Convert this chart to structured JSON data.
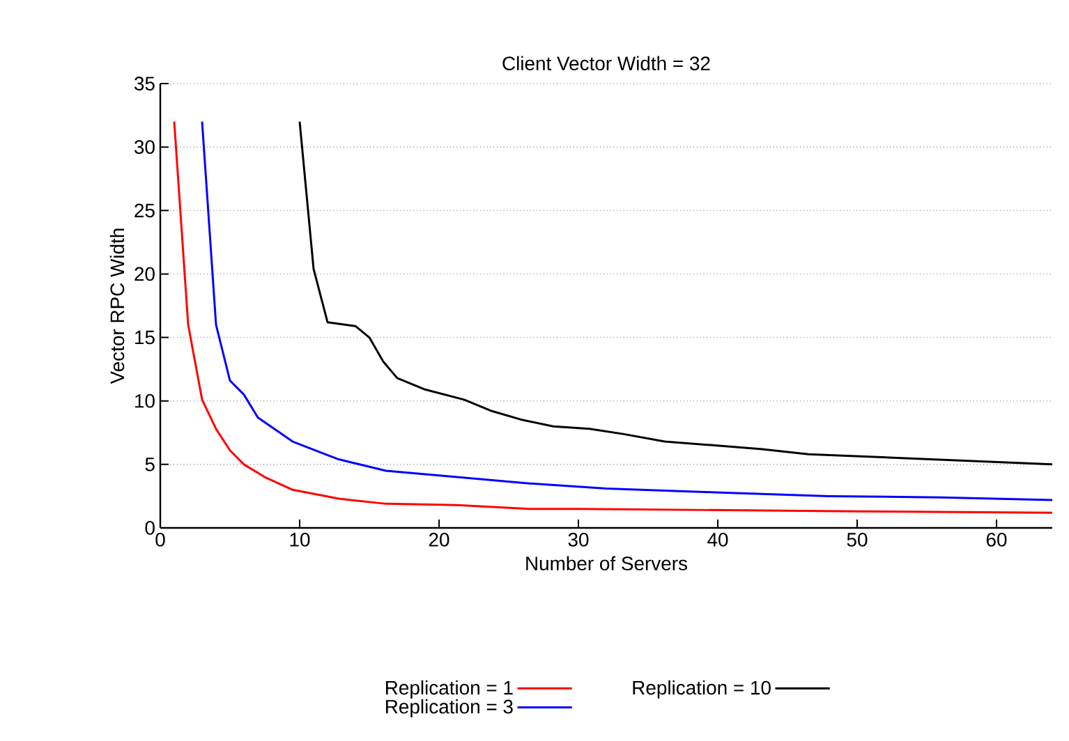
{
  "chart_data": {
    "type": "line",
    "title": "Client Vector Width = 32",
    "xlabel": "Number of Servers",
    "ylabel": "Vector RPC Width",
    "xlim": [
      0,
      64
    ],
    "ylim": [
      0,
      35
    ],
    "xticks": [
      0,
      10,
      20,
      30,
      40,
      50,
      60
    ],
    "yticks": [
      0,
      5,
      10,
      15,
      20,
      25,
      30,
      35
    ],
    "grid": "y",
    "legend": "bottom",
    "marker": "none",
    "line_style": "solid",
    "series": [
      {
        "name": "Replication = 1",
        "color": "#ff0000",
        "x": [
          1,
          2,
          3,
          4,
          5,
          6,
          7.5,
          9.5,
          12.8,
          16.2,
          21.3,
          26.5,
          30,
          40,
          50,
          64
        ],
        "values": [
          32,
          16,
          10.1,
          7.8,
          6.1,
          5.0,
          4.0,
          3.0,
          2.3,
          1.9,
          1.8,
          1.5,
          1.5,
          1.4,
          1.3,
          1.2
        ]
      },
      {
        "name": "Replication = 3",
        "color": "#0000ff",
        "x": [
          3,
          4,
          5,
          6,
          7,
          9.5,
          12.8,
          16.2,
          21.3,
          26.5,
          32,
          39.8,
          48,
          56,
          64
        ],
        "values": [
          32,
          16,
          11.6,
          10.5,
          8.7,
          6.8,
          5.4,
          4.5,
          4.0,
          3.5,
          3.1,
          2.8,
          2.5,
          2.4,
          2.2
        ]
      },
      {
        "name": "Replication = 10",
        "color": "#000000",
        "x": [
          10,
          11,
          12,
          14,
          15,
          16,
          17,
          19,
          21.8,
          23.8,
          26,
          28.2,
          30.8,
          33.2,
          36.2,
          39.8,
          43.2,
          46.5,
          53.2,
          59.8,
          64
        ],
        "values": [
          32,
          20.4,
          16.2,
          15.9,
          15,
          13.1,
          11.8,
          10.9,
          10.1,
          9.2,
          8.5,
          8.0,
          7.8,
          7.4,
          6.8,
          6.5,
          6.2,
          5.8,
          5.5,
          5.2,
          5.0
        ]
      }
    ]
  }
}
